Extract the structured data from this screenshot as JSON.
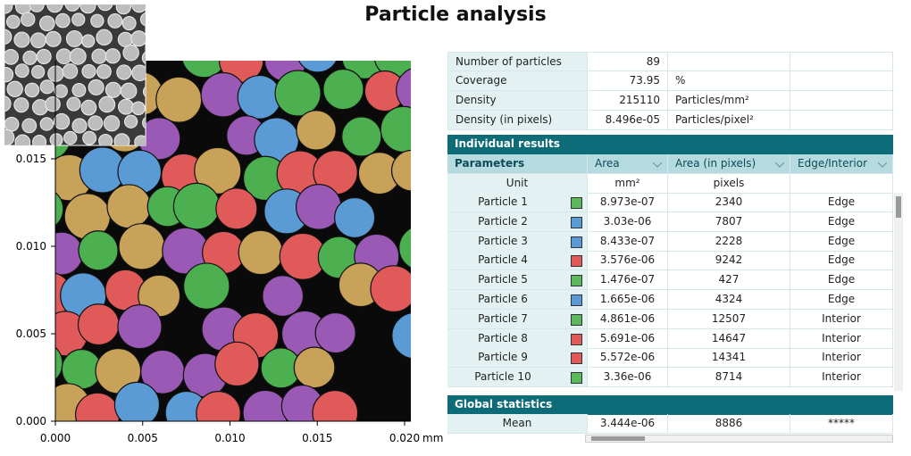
{
  "header": {
    "title": "Particle analysis"
  },
  "image": {
    "x_ticks": [
      "0.000",
      "0.005",
      "0.010",
      "0.015",
      "0.020"
    ],
    "y_ticks": [
      "0.000",
      "0.005",
      "0.010",
      "0.015"
    ],
    "x_unit": "mm"
  },
  "summary": {
    "rows": [
      {
        "label": "Number of particles",
        "value": "89"
      },
      {
        "label": "Coverage",
        "value": "73.95",
        "unit": "%"
      },
      {
        "label": "Density",
        "value": "215110",
        "unit": "Particles/mm²"
      },
      {
        "label": "Density (in pixels)",
        "value": "8.496e-05",
        "unit": "Particles/pixel²"
      }
    ]
  },
  "individual": {
    "title": "Individual results",
    "columns": [
      "Parameters",
      "Area",
      "Area (in pixels)",
      "Edge/Interior"
    ],
    "units": {
      "label": "Unit",
      "area": "mm²",
      "pixels": "pixels"
    },
    "rows": [
      {
        "name": "Particle 1",
        "color": "#5cb85c",
        "area": "8.973e-07",
        "pixels": "2340",
        "position": "Edge"
      },
      {
        "name": "Particle 2",
        "color": "#5b9bd5",
        "area": "3.03e-06",
        "pixels": "7807",
        "position": "Edge"
      },
      {
        "name": "Particle 3",
        "color": "#5b9bd5",
        "area": "8.433e-07",
        "pixels": "2228",
        "position": "Edge"
      },
      {
        "name": "Particle 4",
        "color": "#e05a5a",
        "area": "3.576e-06",
        "pixels": "9242",
        "position": "Edge"
      },
      {
        "name": "Particle 5",
        "color": "#5cb85c",
        "area": "1.476e-07",
        "pixels": "427",
        "position": "Edge"
      },
      {
        "name": "Particle 6",
        "color": "#5b9bd5",
        "area": "1.665e-06",
        "pixels": "4324",
        "position": "Edge"
      },
      {
        "name": "Particle 7",
        "color": "#5cb85c",
        "area": "4.861e-06",
        "pixels": "12507",
        "position": "Interior"
      },
      {
        "name": "Particle 8",
        "color": "#e05a5a",
        "area": "5.691e-06",
        "pixels": "14647",
        "position": "Interior"
      },
      {
        "name": "Particle 9",
        "color": "#e05a5a",
        "area": "5.572e-06",
        "pixels": "14341",
        "position": "Interior"
      },
      {
        "name": "Particle 10",
        "color": "#5cb85c",
        "area": "3.36e-06",
        "pixels": "8714",
        "position": "Interior"
      }
    ]
  },
  "global": {
    "title": "Global statistics",
    "rows": [
      {
        "label": "Mean",
        "area": "3.444e-06",
        "pixels": "8886",
        "position": "*****"
      }
    ]
  }
}
